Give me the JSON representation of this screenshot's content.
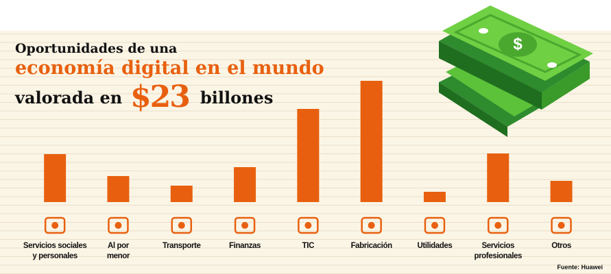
{
  "chart_data": {
    "type": "bar",
    "title": {
      "line1": "Oportunidades de una",
      "line2": "economía digital en el mundo",
      "line3a": "valorada en",
      "line3b": "$23",
      "line3c": "billones"
    },
    "categories": [
      "Servicios sociales\ny personales",
      "Al por\nmenor",
      "Transporte",
      "Finanzas",
      "TIC",
      "Fabricación",
      "Utilidades",
      "Servicios\nprofesionales",
      "Otros"
    ],
    "values": [
      70,
      38,
      24,
      51,
      136,
      177,
      15,
      71,
      31
    ],
    "color": "#e8600f",
    "source": "Fuente: Huawei"
  }
}
